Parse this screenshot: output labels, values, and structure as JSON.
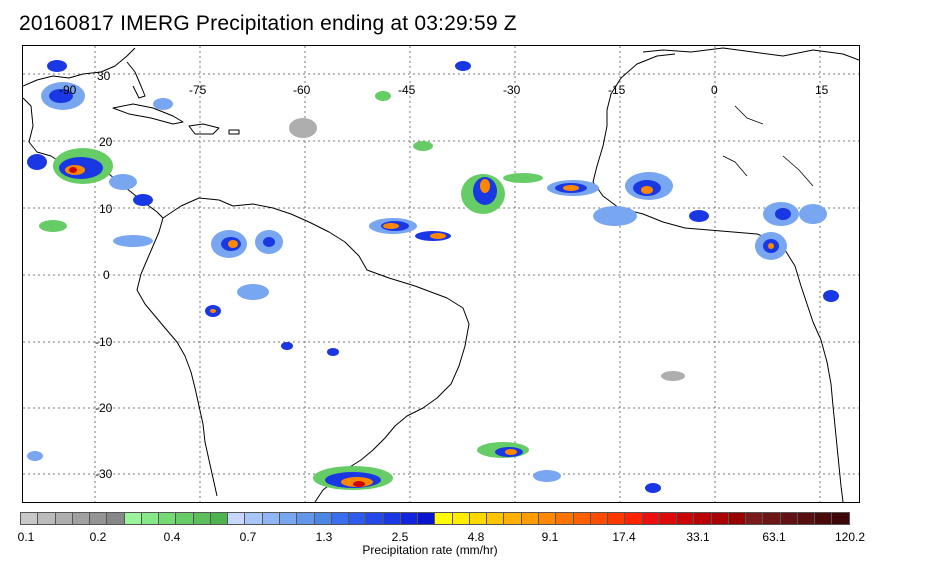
{
  "title": "20160817 IMERG Precipitation ending at 03:29:59 Z",
  "map": {
    "lon_labels": [
      "-90",
      "-75",
      "-60",
      "-45",
      "-30",
      "-15",
      "0",
      "15"
    ],
    "lat_labels": [
      "30",
      "20",
      "10",
      "0",
      "-10",
      "-20",
      "-30"
    ],
    "gridline_style": "dotted",
    "coastline_color": "#000000"
  },
  "colorbar": {
    "label": "Precipitation rate (mm/hr)",
    "tick_labels": [
      "0.1",
      "0.2",
      "0.4",
      "0.7",
      "1.3",
      "2.5",
      "4.8",
      "9.1",
      "17.4",
      "33.1",
      "63.1",
      "120.2"
    ],
    "colors": [
      "#c8c8c8",
      "#bbbbbb",
      "#aeaeae",
      "#a1a1a1",
      "#949494",
      "#878787",
      "#9af59a",
      "#86e886",
      "#74db74",
      "#66cc66",
      "#5cbf5c",
      "#4fb34f",
      "#c8d7ff",
      "#a9c6fa",
      "#8fb6f5",
      "#78a6f0",
      "#6196eb",
      "#4b85e6",
      "#3a6df0",
      "#2f5bec",
      "#2449e8",
      "#1a37e4",
      "#1125df",
      "#0a14cc",
      "#ffff00",
      "#ffec00",
      "#ffd800",
      "#ffc400",
      "#ffb000",
      "#ff9c00",
      "#ff8800",
      "#ff7400",
      "#ff6000",
      "#ff4c00",
      "#ff3800",
      "#ff2400",
      "#ee1010",
      "#dd0a0a",
      "#cc0505",
      "#bb0303",
      "#aa0202",
      "#990000",
      "#7a1a1a",
      "#6e1616",
      "#621212",
      "#560e0e",
      "#4a0a0a",
      "#3e0606"
    ]
  },
  "colors": {
    "light": "#78a6f0",
    "medium": "#1a37e4",
    "heavy": "#ff8800",
    "extreme": "#cc0505",
    "green": "#66cc66",
    "gray": "#aeaeae"
  }
}
